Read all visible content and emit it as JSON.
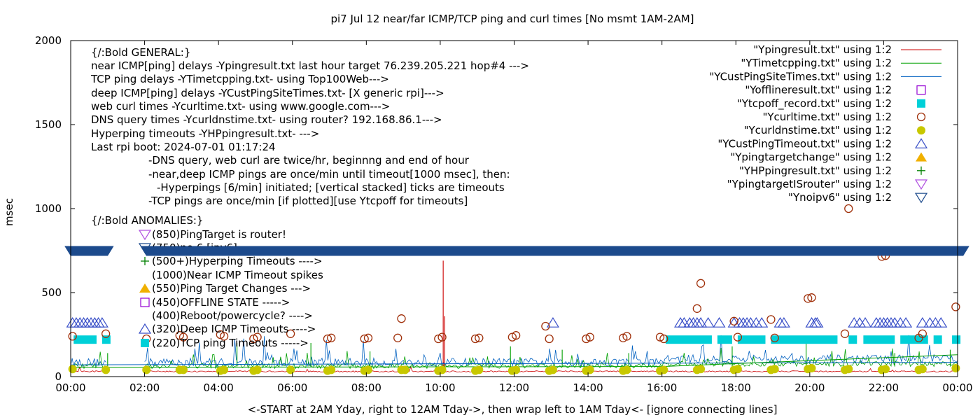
{
  "chart_data": {
    "type": "line",
    "title": "pi7 Jul 12  near/far ICMP/TCP ping and curl times [No msmt 1AM-2AM]",
    "xlabel": "<-START at 2AM Yday, right to 12AM Tday->, then wrap left to 1AM Tday<- [ignore connecting lines]",
    "ylabel": "msec",
    "xlim": [
      0,
      24
    ],
    "ylim": [
      0,
      2000
    ],
    "xticks": [
      0,
      2,
      4,
      6,
      8,
      10,
      12,
      14,
      16,
      18,
      20,
      22,
      24
    ],
    "xtick_labels": [
      "00:00",
      "02:00",
      "04:00",
      "06:00",
      "08:00",
      "10:00",
      "12:00",
      "14:00",
      "16:00",
      "18:00",
      "20:00",
      "22:00",
      "00:00"
    ],
    "yticks": [
      0,
      500,
      1000,
      1500,
      2000
    ],
    "ytick_labels": [
      "0",
      "500",
      "1000",
      "1500",
      "2000"
    ],
    "grid": false,
    "legend_position": "top-right",
    "annotations": [
      "{/:Bold GENERAL:}",
      "near ICMP[ping] delays -Ypingresult.txt last hour target 76.239.205.221 hop#4 --->",
      "TCP ping delays -YTimetcpping.txt- using Top100Web--->",
      "deep ICMP[ping] delays -YCustPingSiteTimes.txt- [X generic rpi]--->",
      "web curl times -Ycurltime.txt- using www.google.com--->",
      "DNS query times -Ycurldnstime.txt- using router? 192.168.86.1--->",
      "Hyperping timeouts -YHPpingresult.txt- --->",
      "Last rpi boot: 2024-07-01 01:17:24",
      "-DNS query, web curl are twice/hr, beginnng and end of hour",
      "-near,deep ICMP pings are once/min until timeout[1000 msec], then:",
      "-Hyperpings [6/min] initiated; [vertical stacked] ticks are timeouts",
      "-TCP pings are once/min [if plotted][use Ytcpoff for timeouts]",
      "{/:Bold ANOMALIES:}",
      "(850)PingTarget is router!",
      "(750)no 6 [ipv6]",
      "(500+)Hyperping Timeouts ---->",
      "(1000)Near ICMP Timeout spikes",
      "(550)Ping Target Changes --->",
      "(450)OFFLINE STATE ----->",
      "(400)Reboot/powercycle? ---->",
      "(320)Deep ICMP Timeouts ---->",
      "(220)TCP ping Timeouts ----->"
    ],
    "series": [
      {
        "name": "\"Ypingresult.txt\" using 1:2",
        "style": "line",
        "color": "#cc0000",
        "baseline_ms": 30,
        "spikes": [
          {
            "x": 10.08,
            "y": 690
          },
          {
            "x": 10.12,
            "y": 360
          }
        ]
      },
      {
        "name": "\"YTimetcpping.txt\" using 1:2",
        "style": "line",
        "color": "#00a000",
        "baseline_ms": 60,
        "spikes": [
          {
            "x": 1.0,
            "y": 140
          },
          {
            "x": 4.5,
            "y": 200
          },
          {
            "x": 6.5,
            "y": 200
          },
          {
            "x": 8.1,
            "y": 150
          },
          {
            "x": 11.9,
            "y": 180
          },
          {
            "x": 13.3,
            "y": 160
          },
          {
            "x": 15.1,
            "y": 140
          },
          {
            "x": 17.9,
            "y": 180
          },
          {
            "x": 19.9,
            "y": 220
          },
          {
            "x": 22.3,
            "y": 140
          },
          {
            "x": 23.8,
            "y": 160
          }
        ]
      },
      {
        "name": "\"YCustPingSiteTimes.txt\" using 1:2",
        "style": "line",
        "color": "#0060c0",
        "baseline_ms": 80
      },
      {
        "name": "\"Yofflineresult.txt\" using 1:2",
        "style": "open-square",
        "color": "#9400d3",
        "points": []
      },
      {
        "name": "\"Ytcpoff_record.txt\" using 1:2",
        "style": "filled-square",
        "color": "#00d0d8",
        "y_ms": 220,
        "segments": [
          [
            0.08,
            0.7
          ],
          [
            0.85,
            1.0
          ],
          [
            16.1,
            17.35
          ],
          [
            17.5,
            17.9
          ],
          [
            18.05,
            18.8
          ],
          [
            18.95,
            20.75
          ],
          [
            21.05,
            21.2
          ],
          [
            21.45,
            22.3
          ],
          [
            22.45,
            23.2
          ],
          [
            23.35,
            23.55
          ],
          [
            23.85,
            24.0
          ]
        ]
      },
      {
        "name": "\"Ycurltime.txt\" using 1:2",
        "style": "open-circle",
        "color": "#a0300a",
        "points": [
          [
            0.05,
            240
          ],
          [
            0.95,
            255
          ],
          [
            2.05,
            225
          ],
          [
            2.95,
            245
          ],
          [
            3.05,
            235
          ],
          [
            4.05,
            250
          ],
          [
            4.15,
            240
          ],
          [
            4.95,
            225
          ],
          [
            5.05,
            235
          ],
          [
            5.95,
            255
          ],
          [
            6.95,
            225
          ],
          [
            7.05,
            230
          ],
          [
            7.95,
            225
          ],
          [
            8.05,
            230
          ],
          [
            8.85,
            230
          ],
          [
            8.95,
            345
          ],
          [
            9.95,
            225
          ],
          [
            10.05,
            235
          ],
          [
            10.95,
            225
          ],
          [
            11.05,
            230
          ],
          [
            11.95,
            235
          ],
          [
            12.05,
            245
          ],
          [
            12.85,
            300
          ],
          [
            12.95,
            225
          ],
          [
            13.95,
            225
          ],
          [
            14.05,
            235
          ],
          [
            14.95,
            230
          ],
          [
            15.05,
            240
          ],
          [
            15.95,
            235
          ],
          [
            16.05,
            225
          ],
          [
            16.95,
            405
          ],
          [
            17.05,
            555
          ],
          [
            17.95,
            330
          ],
          [
            18.05,
            235
          ],
          [
            18.95,
            340
          ],
          [
            19.05,
            230
          ],
          [
            19.95,
            465
          ],
          [
            20.05,
            470
          ],
          [
            20.95,
            255
          ],
          [
            21.05,
            1000
          ],
          [
            21.95,
            715
          ],
          [
            22.05,
            720
          ],
          [
            22.95,
            230
          ],
          [
            23.05,
            255
          ],
          [
            23.95,
            415
          ]
        ]
      },
      {
        "name": "\"Ycurldnstime.txt\" using 1:2",
        "style": "filled-circle",
        "color": "#c8c800",
        "points": [
          [
            0.05,
            45
          ],
          [
            0.95,
            40
          ],
          [
            2.05,
            40
          ],
          [
            2.95,
            40
          ],
          [
            3.05,
            40
          ],
          [
            4.05,
            35
          ],
          [
            4.15,
            40
          ],
          [
            4.95,
            35
          ],
          [
            5.05,
            40
          ],
          [
            5.95,
            40
          ],
          [
            6.95,
            35
          ],
          [
            7.05,
            40
          ],
          [
            7.95,
            35
          ],
          [
            8.05,
            40
          ],
          [
            8.95,
            40
          ],
          [
            9.05,
            40
          ],
          [
            9.95,
            35
          ],
          [
            10.05,
            40
          ],
          [
            10.95,
            35
          ],
          [
            11.05,
            40
          ],
          [
            11.95,
            35
          ],
          [
            12.05,
            40
          ],
          [
            12.95,
            35
          ],
          [
            13.05,
            40
          ],
          [
            13.95,
            35
          ],
          [
            14.05,
            40
          ],
          [
            14.95,
            35
          ],
          [
            15.05,
            40
          ],
          [
            15.95,
            35
          ],
          [
            16.05,
            40
          ],
          [
            16.95,
            40
          ],
          [
            17.05,
            45
          ],
          [
            17.95,
            40
          ],
          [
            18.05,
            45
          ],
          [
            18.95,
            40
          ],
          [
            19.05,
            45
          ],
          [
            19.95,
            45
          ],
          [
            20.05,
            50
          ],
          [
            20.95,
            40
          ],
          [
            21.05,
            45
          ],
          [
            21.95,
            40
          ],
          [
            22.05,
            45
          ],
          [
            22.95,
            40
          ],
          [
            23.05,
            45
          ],
          [
            23.95,
            50
          ]
        ]
      },
      {
        "name": "\"YCustPingTimeout.txt\" using 1:2",
        "style": "open-triangle-up",
        "color": "#3a50c8",
        "y_ms": 320,
        "points": [
          0.05,
          0.15,
          0.25,
          0.35,
          0.45,
          0.55,
          0.65,
          0.75,
          0.85,
          13.05,
          16.5,
          16.6,
          16.75,
          16.85,
          16.95,
          17.05,
          17.25,
          17.55,
          17.95,
          18.1,
          18.2,
          18.3,
          18.4,
          18.55,
          18.7,
          19.2,
          19.3,
          20.05,
          20.15,
          20.2,
          21.2,
          21.35,
          21.5,
          21.8,
          21.9,
          22.0,
          22.1,
          22.2,
          22.3,
          22.45,
          22.6,
          23.05,
          23.25,
          23.4,
          23.55
        ]
      },
      {
        "name": "\"Ypingtargetchange\" using 1:2",
        "style": "filled-triangle-up",
        "color": "#f0b000",
        "points": []
      },
      {
        "name": "\"YHPpingresult.txt\" using 1:2",
        "style": "plus",
        "color": "#008000",
        "points": []
      },
      {
        "name": "\"YpingtargetISrouter\" using 1:2",
        "style": "open-triangle-down",
        "color": "#b050e0",
        "points": []
      },
      {
        "name": "\"Ynoipv6\" using 1:2",
        "style": "open-triangle-down",
        "color": "#1c4a8c",
        "y_ms": 750,
        "segments": [
          [
            -0.15,
            1.15
          ],
          [
            1.9,
            24.3
          ]
        ]
      }
    ]
  }
}
